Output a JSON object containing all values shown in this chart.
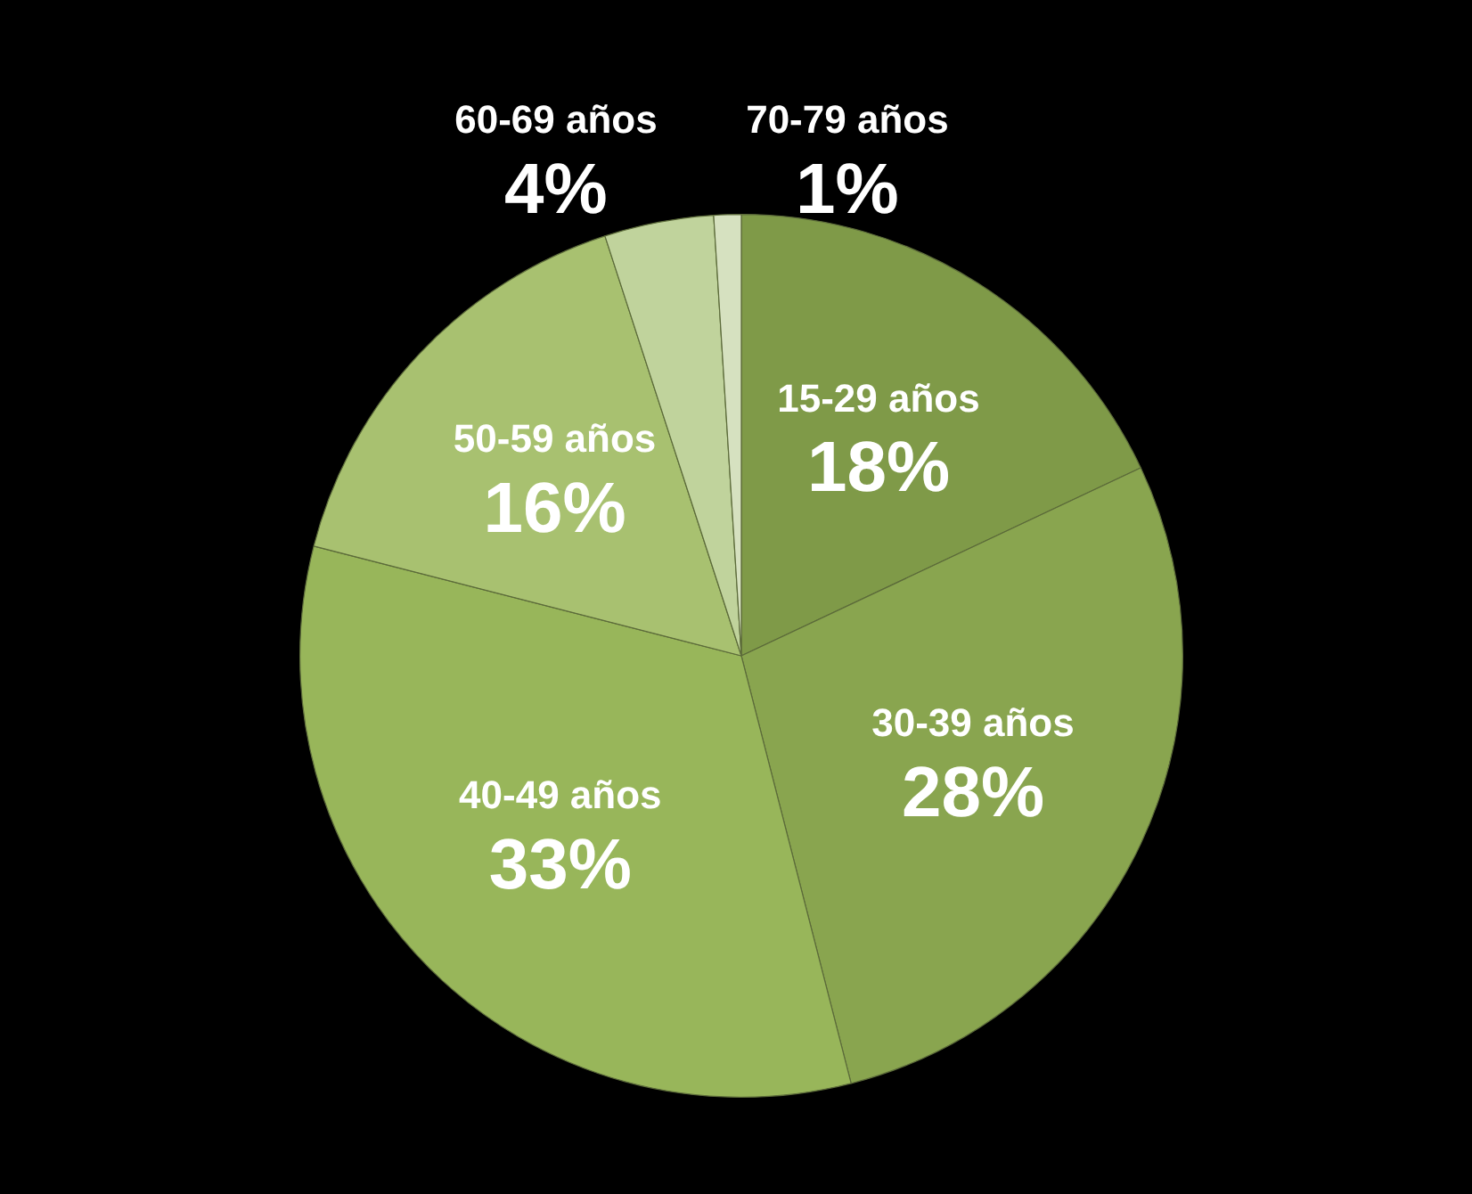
{
  "chart_data": {
    "type": "pie",
    "categories": [
      "15-29 años",
      "30-39 años",
      "40-49 años",
      "50-59 años",
      "60-69 años",
      "70-79 años"
    ],
    "values": [
      18,
      28,
      33,
      16,
      4,
      1
    ],
    "value_labels": [
      "18%",
      "28%",
      "33%",
      "16%",
      "4%",
      "1%"
    ],
    "colors": [
      "#7f9a48",
      "#89a54f",
      "#98b65a",
      "#a8c170",
      "#c0d39c",
      "#d6e1c0"
    ],
    "legend": false
  }
}
